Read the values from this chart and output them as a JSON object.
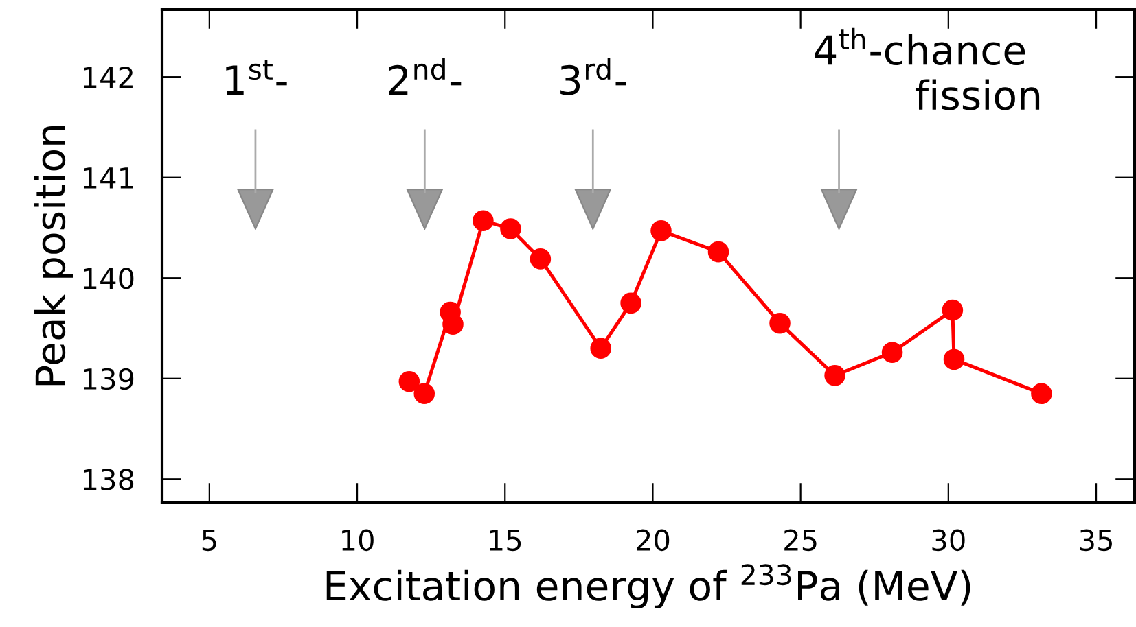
{
  "chart_data": {
    "type": "line",
    "xlabel": "Excitation energy of $^{233}$Pa (MeV)",
    "ylabel": "Peak position",
    "x": [
      11.76,
      12.27,
      13.15,
      13.24,
      14.26,
      15.19,
      16.2,
      18.24,
      19.26,
      20.28,
      22.22,
      24.3,
      26.16,
      28.1,
      30.14,
      30.19,
      33.15
    ],
    "series": [
      {
        "color": "#ff0000",
        "values": [
          138.97,
          138.85,
          139.66,
          139.54,
          140.57,
          140.49,
          140.19,
          139.3,
          139.75,
          140.47,
          140.26,
          139.55,
          139.03,
          139.26,
          139.68,
          139.19,
          138.85
        ]
      }
    ],
    "marker": "circle",
    "line_style": "solid",
    "xlim": [
      3.4,
      36.3
    ],
    "xticks": [
      5,
      10,
      15,
      20,
      25,
      30,
      35
    ],
    "ylim": [
      137.77,
      142.67
    ],
    "yticks": [
      138,
      139,
      140,
      141,
      142
    ],
    "annotations": [
      "1$^{st}$-",
      "2$^{nd}$-",
      "3$^{rd}$-",
      "4$^{th}$-chance\n        fission"
    ],
    "grid": false
  }
}
